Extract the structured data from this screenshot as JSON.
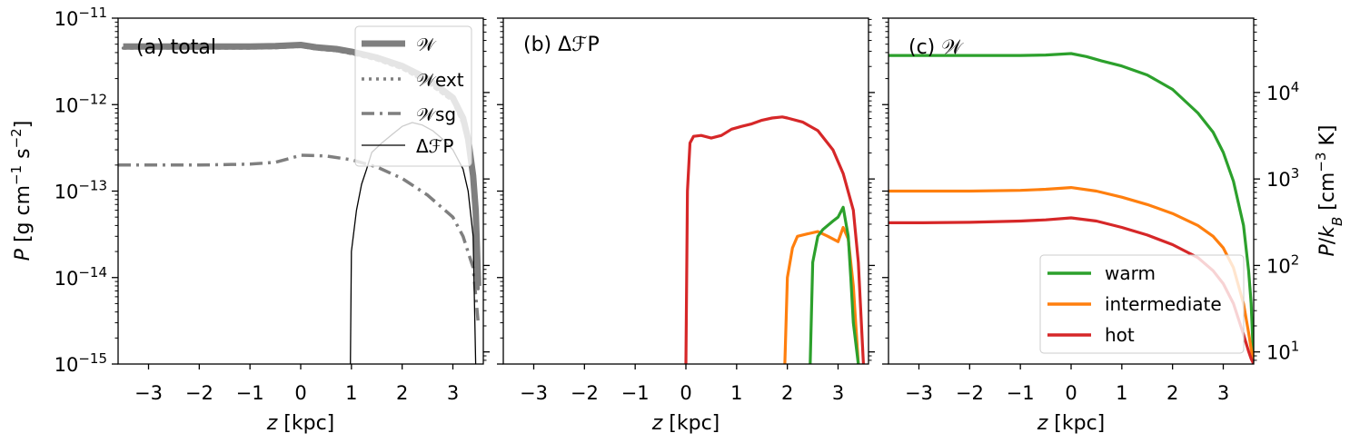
{
  "chart_data": [
    {
      "panel": "a",
      "type": "line",
      "title": "(a) total",
      "xlabel": "z [kpc]",
      "ylabel": "P [g cm^-1 s^-2]",
      "yscale": "log",
      "xlim": [
        -3.6,
        3.6
      ],
      "ylim": [
        1e-15,
        1e-11
      ],
      "x_ticks": [
        "−3",
        "−2",
        "−1",
        "0",
        "1",
        "2",
        "3"
      ],
      "y_ticks": [
        "10^-15",
        "10^-14",
        "10^-13",
        "10^-12",
        "10^-11"
      ],
      "legend_position": "upper right",
      "series": [
        {
          "name": "𝒲",
          "color": "#7f7f7f",
          "style": "solid-thick",
          "x": [
            -3.5,
            -3,
            -2,
            -1,
            -0.5,
            0,
            0.3,
            0.7,
            1,
            1.5,
            2,
            2.5,
            3,
            3.2,
            3.3,
            3.4,
            3.45,
            3.5
          ],
          "y": [
            4.7e-12,
            4.7e-12,
            4.7e-12,
            4.7e-12,
            4.75e-12,
            4.9e-12,
            4.6e-12,
            4.4e-12,
            4.1e-12,
            3.5e-12,
            2.8e-12,
            2e-12,
            1.2e-12,
            7e-13,
            4e-13,
            1.5e-13,
            6e-14,
            8e-15
          ]
        },
        {
          "name": "𝒲ext",
          "color": "#7f7f7f",
          "style": "dotted",
          "x": [
            -3.5,
            -3,
            -2,
            -1,
            -0.5,
            0,
            0.3,
            0.7,
            1,
            1.5,
            2,
            2.5,
            3,
            3.2,
            3.3,
            3.4,
            3.45,
            3.5
          ],
          "y": [
            4.5e-12,
            4.5e-12,
            4.5e-12,
            4.5e-12,
            4.55e-12,
            4.7e-12,
            4.4e-12,
            4.2e-12,
            3.9e-12,
            3.3e-12,
            2.6e-12,
            1.8e-12,
            1.1e-12,
            6e-13,
            3.5e-13,
            1.3e-13,
            5e-14,
            7e-15
          ]
        },
        {
          "name": "𝒲sg",
          "color": "#7f7f7f",
          "style": "dashdot",
          "x": [
            -3.6,
            -3,
            -2,
            -1,
            -0.5,
            -0.2,
            0,
            0.5,
            1,
            1.5,
            2,
            2.5,
            3,
            3.2,
            3.4,
            3.5
          ],
          "y": [
            2e-13,
            2e-13,
            2e-13,
            2.05e-13,
            2.15e-13,
            2.4e-13,
            2.6e-13,
            2.55e-13,
            2.3e-13,
            1.9e-13,
            1.4e-13,
            9e-14,
            5e-14,
            3e-14,
            1.3e-14,
            3e-15
          ]
        },
        {
          "name": "ΔℱP",
          "color": "#000000",
          "style": "solid-thin",
          "x": [
            0.98,
            1.0,
            1.1,
            1.2,
            1.3,
            1.4,
            1.6,
            1.8,
            2.0,
            2.2,
            2.4,
            2.6,
            2.8,
            3.0,
            3.2,
            3.3,
            3.4,
            3.45
          ],
          "y": [
            1e-15,
            2e-14,
            6e-14,
            1.2e-13,
            1.8e-13,
            2.8e-13,
            3.6e-13,
            4.5e-13,
            5.6e-13,
            6.2e-13,
            5.8e-13,
            5e-13,
            4e-13,
            3e-13,
            1.8e-13,
            1e-13,
            3e-14,
            1e-15
          ]
        }
      ]
    },
    {
      "panel": "b",
      "type": "line",
      "title": "(b) ΔℱP",
      "xlabel": "z [kpc]",
      "yscale": "log",
      "xlim": [
        -3.6,
        3.6
      ],
      "ylim": [
        1e-15,
        1e-11
      ],
      "x_ticks": [
        "−3",
        "−2",
        "−1",
        "0",
        "1",
        "2",
        "3"
      ],
      "series": [
        {
          "name": "hot",
          "color": "#d62728",
          "x": [
            0.0,
            0.03,
            0.08,
            0.15,
            0.3,
            0.5,
            0.7,
            0.9,
            1.1,
            1.3,
            1.5,
            1.7,
            1.9,
            2.0,
            2.3,
            2.6,
            2.9,
            3.1,
            3.3,
            3.4,
            3.5
          ],
          "y": [
            1e-15,
            1e-13,
            3.6e-13,
            4.3e-13,
            4.4e-13,
            4.1e-13,
            4.4e-13,
            5.2e-13,
            5.6e-13,
            6e-13,
            6.6e-13,
            7e-13,
            7.2e-13,
            7e-13,
            6.3e-13,
            5e-13,
            3e-13,
            1.6e-13,
            6e-14,
            1.5e-14,
            1e-15
          ]
        },
        {
          "name": "intermediate",
          "color": "#ff7f0e",
          "x": [
            1.95,
            2.0,
            2.1,
            2.2,
            2.4,
            2.6,
            2.8,
            3.0,
            3.1,
            3.2,
            3.3,
            3.4
          ],
          "y": [
            1e-15,
            1e-14,
            2.2e-14,
            3e-14,
            3.2e-14,
            3.4e-14,
            3e-14,
            2.6e-14,
            3.8e-14,
            2.8e-14,
            8e-15,
            1e-15
          ]
        },
        {
          "name": "warm",
          "color": "#2ca02c",
          "x": [
            2.45,
            2.5,
            2.6,
            2.7,
            2.9,
            3.0,
            3.1,
            3.2,
            3.25,
            3.3,
            3.4
          ],
          "y": [
            1e-15,
            1.5e-14,
            3e-14,
            3.6e-14,
            4.5e-14,
            5e-14,
            6.5e-14,
            3e-14,
            1e-14,
            3e-15,
            1e-15
          ]
        }
      ]
    },
    {
      "panel": "c",
      "type": "line",
      "title": "(c) 𝒲",
      "xlabel": "z [kpc]",
      "ylabel_right": "P/k_B [cm^-3 K]",
      "yscale": "log",
      "xlim": [
        -3.6,
        3.6
      ],
      "ylim": [
        1e-15,
        1e-11
      ],
      "x_ticks": [
        "−3",
        "−2",
        "−1",
        "0",
        "1",
        "2",
        "3"
      ],
      "y2_ticks": [
        "10^1",
        "10^2",
        "10^3",
        "10^4"
      ],
      "legend_position": "lower right",
      "series": [
        {
          "name": "warm",
          "color": "#2ca02c",
          "x": [
            -3.6,
            -3,
            -2,
            -1,
            -0.5,
            0,
            0.3,
            0.6,
            1,
            1.5,
            2,
            2.5,
            2.8,
            3.0,
            3.2,
            3.4,
            3.5,
            3.55,
            3.6
          ],
          "y": [
            3.7e-12,
            3.7e-12,
            3.7e-12,
            3.7e-12,
            3.75e-12,
            3.9e-12,
            3.6e-12,
            3.2e-12,
            2.8e-12,
            2.2e-12,
            1.5e-12,
            8e-13,
            4.8e-13,
            2.8e-13,
            1.3e-13,
            4e-14,
            1.2e-14,
            5e-15,
            1e-15
          ]
        },
        {
          "name": "intermediate",
          "color": "#ff7f0e",
          "x": [
            -3.6,
            -3,
            -2,
            -1,
            -0.5,
            0,
            0.5,
            1,
            1.5,
            2,
            2.5,
            2.8,
            3.0,
            3.2,
            3.4,
            3.5,
            3.55,
            3.6
          ],
          "y": [
            1e-13,
            1e-13,
            1e-13,
            1.02e-13,
            1.05e-13,
            1.1e-13,
            1e-13,
            8.5e-14,
            7e-14,
            5.5e-14,
            4e-14,
            3e-14,
            2.2e-14,
            1.3e-14,
            5e-15,
            2.3e-15,
            1.5e-15,
            1e-15
          ]
        },
        {
          "name": "hot",
          "color": "#d62728",
          "x": [
            -3.6,
            -3,
            -2,
            -1,
            -0.5,
            0,
            0.5,
            1,
            1.5,
            2,
            2.5,
            2.8,
            3.0,
            3.2,
            3.4,
            3.5,
            3.55,
            3.6
          ],
          "y": [
            4.3e-14,
            4.3e-14,
            4.35e-14,
            4.5e-14,
            4.65e-14,
            4.9e-14,
            4.5e-14,
            3.8e-14,
            3.1e-14,
            2.4e-14,
            1.7e-14,
            1.2e-14,
            8.5e-15,
            5e-15,
            2.2e-15,
            1.4e-15,
            1.15e-15,
            1e-15
          ]
        }
      ]
    }
  ]
}
